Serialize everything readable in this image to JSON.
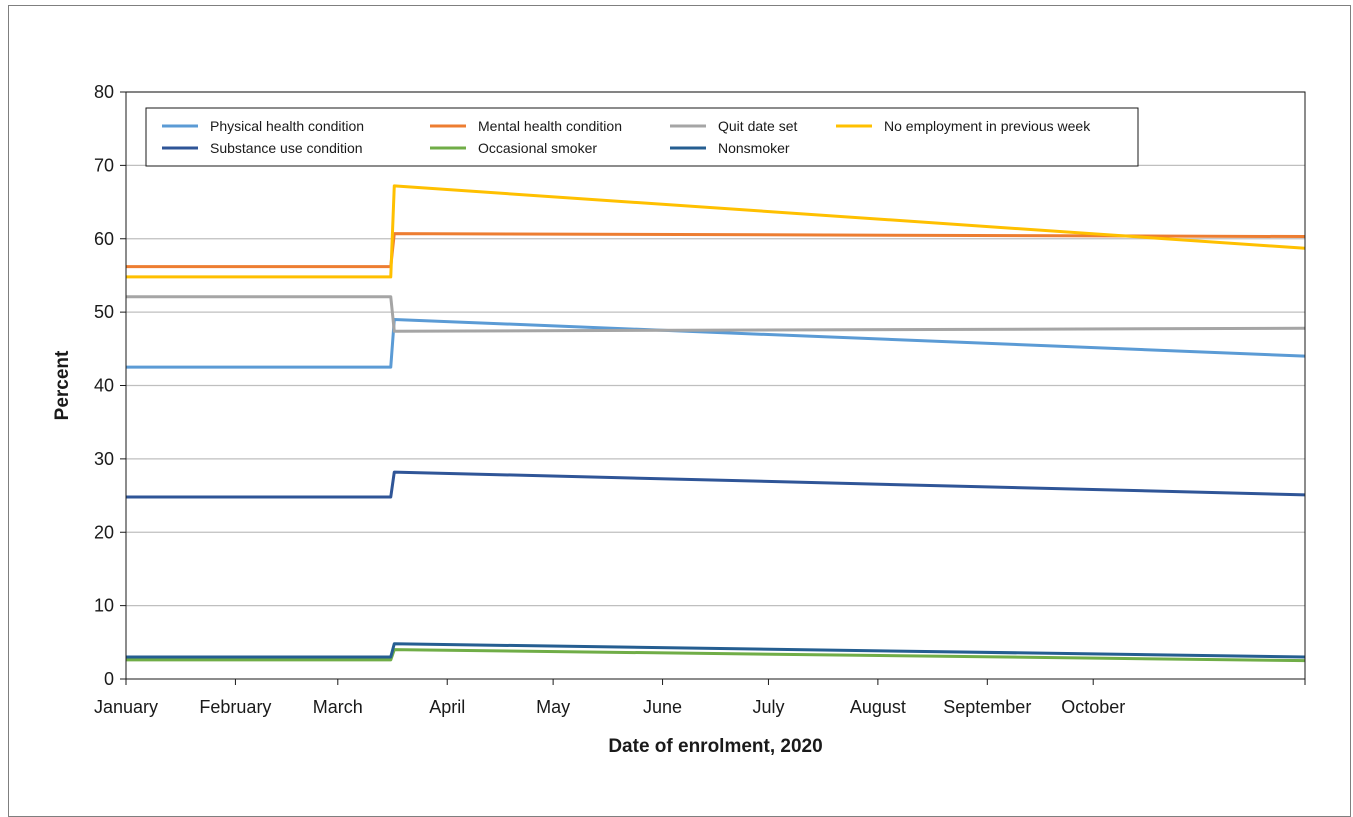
{
  "chart_data": {
    "type": "line",
    "title": "",
    "xlabel": "Date of enrolment, 2020",
    "ylabel": "Percent",
    "ylim": [
      0,
      80
    ],
    "yticks": [
      0,
      10,
      20,
      30,
      40,
      50,
      60,
      70,
      80
    ],
    "xlim": [
      "2020-01-01",
      "2020-11-30"
    ],
    "x_tick_labels": [
      "January",
      "February",
      "March",
      "April",
      "May",
      "June",
      "July",
      "August",
      "September",
      "October"
    ],
    "x_tick_dates": [
      "2020-01-01",
      "2020-02-01",
      "2020-03-01",
      "2020-04-01",
      "2020-05-01",
      "2020-06-01",
      "2020-07-01",
      "2020-08-01",
      "2020-09-01",
      "2020-10-01"
    ],
    "grid": "horizontal",
    "legend_position": "top",
    "series": [
      {
        "name": "Physical health condition",
        "color": "#5b9bd5",
        "x": [
          "2020-01-01",
          "2020-03-16",
          "2020-03-17",
          "2020-11-30"
        ],
        "y": [
          42.5,
          42.5,
          49.0,
          44.0
        ]
      },
      {
        "name": "Mental health condition",
        "color": "#ed7d31",
        "x": [
          "2020-01-01",
          "2020-03-16",
          "2020-03-17",
          "2020-11-30"
        ],
        "y": [
          56.2,
          56.2,
          60.7,
          60.3
        ]
      },
      {
        "name": "Quit date set",
        "color": "#a5a5a5",
        "x": [
          "2020-01-01",
          "2020-03-16",
          "2020-03-17",
          "2020-11-30"
        ],
        "y": [
          52.1,
          52.1,
          47.4,
          47.8
        ]
      },
      {
        "name": "No employment in previous week",
        "color": "#ffc000",
        "x": [
          "2020-01-01",
          "2020-03-16",
          "2020-03-17",
          "2020-11-30"
        ],
        "y": [
          54.8,
          54.8,
          67.2,
          58.7
        ]
      },
      {
        "name": "Substance use condition",
        "color": "#2f5597",
        "x": [
          "2020-01-01",
          "2020-03-16",
          "2020-03-17",
          "2020-11-30"
        ],
        "y": [
          24.8,
          24.8,
          28.2,
          25.1
        ]
      },
      {
        "name": "Occasional smoker",
        "color": "#70ad47",
        "x": [
          "2020-01-01",
          "2020-03-16",
          "2020-03-17",
          "2020-11-30"
        ],
        "y": [
          2.6,
          2.6,
          4.0,
          2.5
        ]
      },
      {
        "name": "Nonsmoker",
        "color": "#255e91",
        "x": [
          "2020-01-01",
          "2020-03-16",
          "2020-03-17",
          "2020-11-30"
        ],
        "y": [
          3.0,
          3.0,
          4.8,
          3.0
        ]
      }
    ]
  }
}
